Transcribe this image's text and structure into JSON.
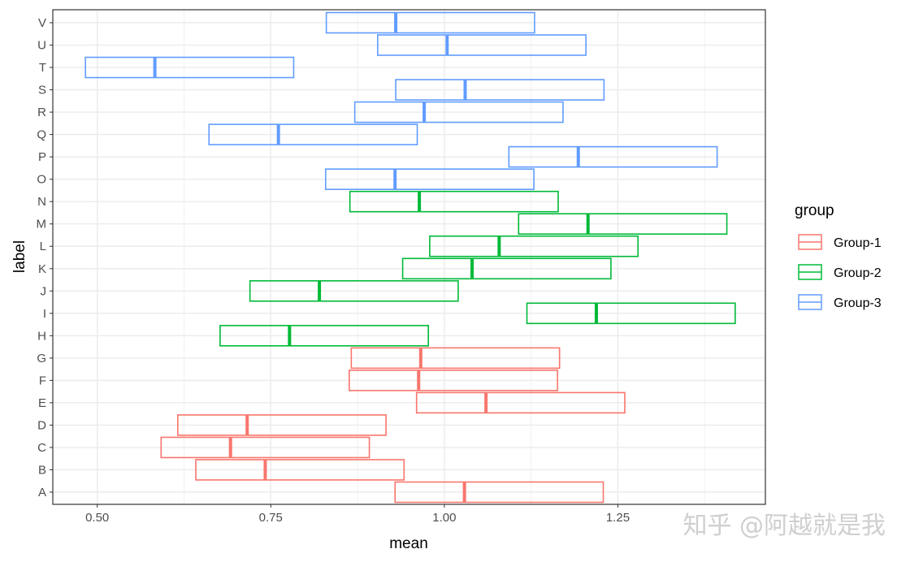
{
  "chart_data": {
    "type": "crossbar",
    "xlabel": "mean",
    "ylabel": "label",
    "xlim": [
      0.436,
      1.4625
    ],
    "xticks": [
      0.5,
      0.75,
      1.0,
      1.25
    ],
    "xtick_labels": [
      "0.50",
      "0.75",
      "1.00",
      "1.25"
    ],
    "grid": true,
    "legend": {
      "title": "group",
      "position": "right",
      "entries": [
        "Group-1",
        "Group-2",
        "Group-3"
      ]
    },
    "colors": {
      "Group-1": "#F8766D",
      "Group-2": "#00BA38",
      "Group-3": "#619CFF"
    },
    "points": [
      {
        "label": "A",
        "group": "Group-1",
        "mean": 1.029,
        "xmin": 0.929,
        "xmax": 1.229
      },
      {
        "label": "B",
        "group": "Group-1",
        "mean": 0.742,
        "xmin": 0.642,
        "xmax": 0.942
      },
      {
        "label": "C",
        "group": "Group-1",
        "mean": 0.692,
        "xmin": 0.592,
        "xmax": 0.892
      },
      {
        "label": "D",
        "group": "Group-1",
        "mean": 0.716,
        "xmin": 0.616,
        "xmax": 0.916
      },
      {
        "label": "E",
        "group": "Group-1",
        "mean": 1.06,
        "xmin": 0.96,
        "xmax": 1.26
      },
      {
        "label": "F",
        "group": "Group-1",
        "mean": 0.963,
        "xmin": 0.863,
        "xmax": 1.163
      },
      {
        "label": "G",
        "group": "Group-1",
        "mean": 0.966,
        "xmin": 0.866,
        "xmax": 1.166
      },
      {
        "label": "H",
        "group": "Group-2",
        "mean": 0.777,
        "xmin": 0.677,
        "xmax": 0.977
      },
      {
        "label": "I",
        "group": "Group-2",
        "mean": 1.219,
        "xmin": 1.119,
        "xmax": 1.419
      },
      {
        "label": "J",
        "group": "Group-2",
        "mean": 0.82,
        "xmin": 0.72,
        "xmax": 1.02
      },
      {
        "label": "K",
        "group": "Group-2",
        "mean": 1.04,
        "xmin": 0.94,
        "xmax": 1.24
      },
      {
        "label": "L",
        "group": "Group-2",
        "mean": 1.079,
        "xmin": 0.979,
        "xmax": 1.279
      },
      {
        "label": "M",
        "group": "Group-2",
        "mean": 1.207,
        "xmin": 1.107,
        "xmax": 1.407
      },
      {
        "label": "N",
        "group": "Group-2",
        "mean": 0.964,
        "xmin": 0.864,
        "xmax": 1.164
      },
      {
        "label": "O",
        "group": "Group-3",
        "mean": 0.929,
        "xmin": 0.829,
        "xmax": 1.129
      },
      {
        "label": "P",
        "group": "Group-3",
        "mean": 1.193,
        "xmin": 1.093,
        "xmax": 1.393
      },
      {
        "label": "Q",
        "group": "Group-3",
        "mean": 0.761,
        "xmin": 0.661,
        "xmax": 0.961
      },
      {
        "label": "R",
        "group": "Group-3",
        "mean": 0.971,
        "xmin": 0.871,
        "xmax": 1.171
      },
      {
        "label": "S",
        "group": "Group-3",
        "mean": 1.03,
        "xmin": 0.93,
        "xmax": 1.23
      },
      {
        "label": "T",
        "group": "Group-3",
        "mean": 0.583,
        "xmin": 0.483,
        "xmax": 0.783
      },
      {
        "label": "U",
        "group": "Group-3",
        "mean": 1.004,
        "xmin": 0.904,
        "xmax": 1.204
      },
      {
        "label": "V",
        "group": "Group-3",
        "mean": 0.93,
        "xmin": 0.83,
        "xmax": 1.13
      }
    ]
  },
  "watermark": "知乎 @阿越就是我"
}
